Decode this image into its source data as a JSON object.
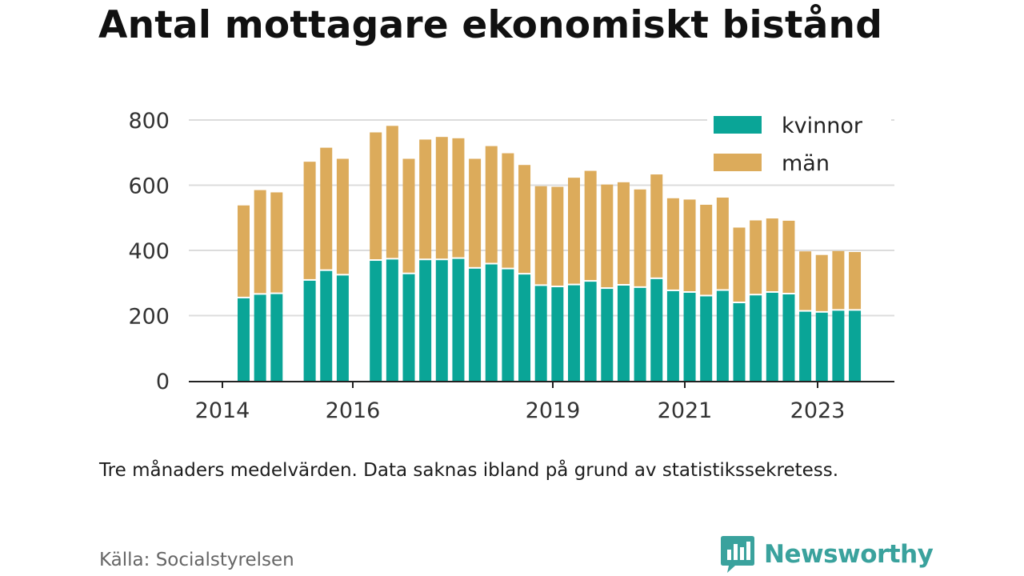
{
  "title": "Antal mottagare ekonomiskt bistånd",
  "note": "Tre månaders medelvärden. Data saknas ibland på grund av statistikssekretess.",
  "source": "Källa: Socialstyrelsen",
  "brand": {
    "name": "Newsworthy",
    "color": "#3aa29d",
    "icon": "newsworthy-logo-icon"
  },
  "colors": {
    "kvinnor": "#0aa597",
    "man": "#dcab5b",
    "grid": "#dcdcdc",
    "axis": "#222222"
  },
  "chart_data": {
    "type": "bar",
    "stacked": true,
    "title": "",
    "xlabel": "",
    "ylabel": "",
    "ylim": [
      0,
      800
    ],
    "yticks": [
      0,
      200,
      400,
      600,
      800
    ],
    "xticks": [
      "2014",
      "2016",
      "2019",
      "2021",
      "2023"
    ],
    "grid": true,
    "legend": "top-right",
    "series": [
      {
        "name": "kvinnor",
        "values": [
          253,
          264,
          266,
          307,
          337,
          323,
          368,
          372,
          327,
          370,
          370,
          374,
          344,
          357,
          342,
          326,
          291,
          287,
          293,
          304,
          282,
          292,
          285,
          312,
          275,
          270,
          259,
          276,
          238,
          262,
          270,
          265,
          212,
          209,
          215,
          215
        ]
      },
      {
        "name": "män",
        "values": [
          285,
          321,
          312,
          365,
          378,
          358,
          394,
          410,
          354,
          370,
          378,
          370,
          337,
          363,
          356,
          336,
          306,
          308,
          330,
          340,
          320,
          317,
          302,
          321,
          285,
          286,
          281,
          286,
          232,
          230,
          228,
          226,
          185,
          177,
          183,
          180
        ]
      }
    ]
  }
}
